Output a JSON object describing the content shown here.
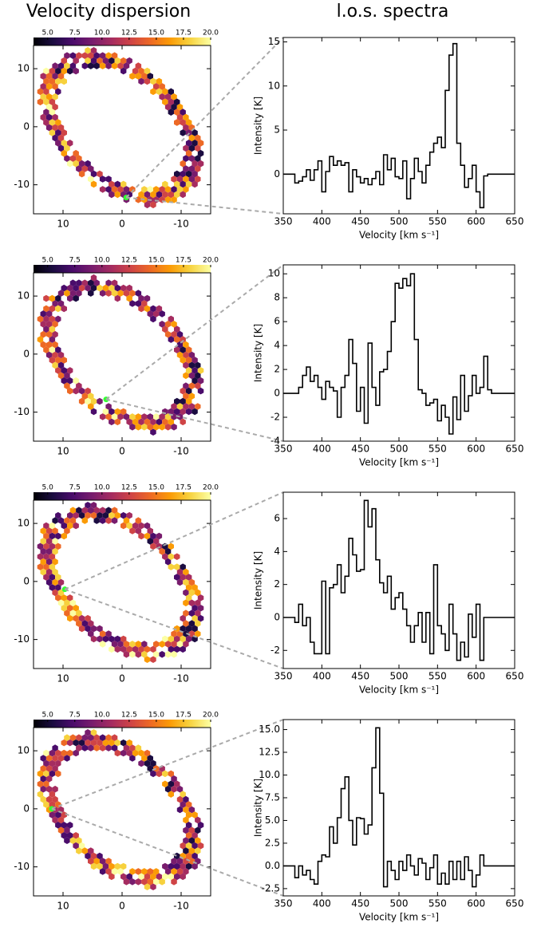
{
  "chart_data": [
    {
      "type": "hexbin_map",
      "title": "Velocity dispersion",
      "xlim": [
        15,
        -15
      ],
      "ylim": [
        -15,
        14
      ],
      "xticks": [
        10,
        0,
        -10
      ],
      "yticks": [
        10,
        0,
        -10
      ],
      "colorbar": {
        "lim": [
          3.7,
          20
        ],
        "ticks": [
          {
            "value": 5,
            "label": "5.0"
          },
          7.5,
          {
            "value": 10,
            "label": "10.0"
          },
          12.5,
          {
            "value": 15,
            "label": "15.0"
          },
          17.5,
          {
            "value": 20,
            "label": "20.0"
          }
        ]
      },
      "marker": {
        "x": -0.7,
        "y": -12.2,
        "color": "#33ff33"
      }
    },
    {
      "type": "line",
      "title": "l.o.s. spectra",
      "xlabel": "Velocity [km s⁻¹]",
      "ylabel": "Intensity [K]",
      "color": "#000000",
      "xlim": [
        350,
        650
      ],
      "ylim": [
        -4.5,
        15.5
      ],
      "xticks": [
        350,
        400,
        450,
        500,
        550,
        600,
        650
      ],
      "yticks": [
        0,
        5,
        10,
        15
      ],
      "x": [
        350,
        355,
        360,
        365,
        370,
        375,
        380,
        385,
        390,
        395,
        400,
        405,
        410,
        415,
        420,
        425,
        430,
        435,
        440,
        445,
        450,
        455,
        460,
        465,
        470,
        475,
        480,
        485,
        490,
        495,
        500,
        505,
        510,
        515,
        520,
        525,
        530,
        535,
        540,
        545,
        550,
        555,
        560,
        565,
        570,
        575,
        580,
        585,
        590,
        595,
        600,
        605,
        610,
        615,
        620,
        625,
        630,
        635,
        640,
        645,
        650
      ],
      "values": [
        0,
        0,
        0,
        -1,
        -0.8,
        -0.3,
        0.5,
        -0.7,
        0.5,
        1.5,
        -2,
        0.3,
        2,
        1,
        1.5,
        1,
        1.3,
        -2,
        0.5,
        -0.3,
        -1,
        -0.5,
        -1.2,
        -0.5,
        0.3,
        -1.2,
        2.2,
        0.5,
        1.8,
        -0.3,
        -0.5,
        1.5,
        -2.8,
        -0.5,
        1.8,
        0.3,
        -1,
        1,
        2.5,
        3.5,
        4.2,
        3,
        9.5,
        13.5,
        14.8,
        3.5,
        1,
        -1.5,
        -0.5,
        1,
        -2,
        -3.8,
        -0.2,
        0,
        0,
        0,
        0,
        0,
        0,
        0,
        0
      ]
    },
    {
      "type": "hexbin_map",
      "xlim": [
        15,
        -15
      ],
      "ylim": [
        -15,
        14
      ],
      "xticks": [
        10,
        0,
        -10
      ],
      "yticks": [
        10,
        0,
        -10
      ],
      "colorbar": {
        "lim": [
          3.7,
          20
        ],
        "ticks": [
          {
            "value": 5,
            "label": "5.0"
          },
          7.5,
          {
            "value": 10,
            "label": "10.0"
          },
          12.5,
          {
            "value": 15,
            "label": "15.0"
          },
          17.5,
          {
            "value": 20,
            "label": "20.0"
          }
        ]
      },
      "marker": {
        "x": 2.7,
        "y": -7.8,
        "color": "#33ff33"
      }
    },
    {
      "type": "line",
      "xlabel": "Velocity [km s⁻¹]",
      "ylabel": "Intensity [K]",
      "color": "#000000",
      "xlim": [
        350,
        650
      ],
      "ylim": [
        -4,
        10.75
      ],
      "xticks": [
        350,
        400,
        450,
        500,
        550,
        600,
        650
      ],
      "yticks": [
        -4,
        -2,
        0,
        2,
        4,
        6,
        8,
        10
      ],
      "x": [
        350,
        355,
        360,
        365,
        370,
        375,
        380,
        385,
        390,
        395,
        400,
        405,
        410,
        415,
        420,
        425,
        430,
        435,
        440,
        445,
        450,
        455,
        460,
        465,
        470,
        475,
        480,
        485,
        490,
        495,
        500,
        505,
        510,
        515,
        520,
        525,
        530,
        535,
        540,
        545,
        550,
        555,
        560,
        565,
        570,
        575,
        580,
        585,
        590,
        595,
        600,
        605,
        610,
        615,
        620,
        625,
        630,
        635,
        640,
        645,
        650
      ],
      "values": [
        0,
        0,
        0,
        0,
        0.5,
        1.5,
        2.2,
        1,
        1.5,
        0.5,
        -0.5,
        1,
        0.5,
        0.2,
        -2,
        0.5,
        1.5,
        4.5,
        2.5,
        -1.5,
        0.5,
        -2.5,
        4.2,
        0.5,
        -1,
        1.8,
        2,
        3.5,
        6,
        9.2,
        8.8,
        9.6,
        9,
        10,
        4.5,
        0.3,
        0,
        -1,
        -0.8,
        -0.5,
        -2.3,
        -1,
        -2,
        -3.4,
        -0.3,
        -2.2,
        1.5,
        -1.5,
        -0.2,
        1.5,
        0,
        0.5,
        3.1,
        0.3,
        0,
        0,
        0,
        0,
        0,
        0,
        0
      ]
    },
    {
      "type": "hexbin_map",
      "xlim": [
        15,
        -15
      ],
      "ylim": [
        -15,
        14
      ],
      "xticks": [
        10,
        0,
        -10
      ],
      "yticks": [
        10,
        0,
        -10
      ],
      "colorbar": {
        "lim": [
          3.7,
          20
        ],
        "ticks": [
          {
            "value": 5,
            "label": "5.0"
          },
          7.5,
          {
            "value": 10,
            "label": "10.0"
          },
          12.5,
          {
            "value": 15,
            "label": "15.0"
          },
          17.5,
          {
            "value": 20,
            "label": "20.0"
          }
        ]
      },
      "marker": {
        "x": 9.7,
        "y": -1.35,
        "color": "#33ff33"
      }
    },
    {
      "type": "line",
      "xlabel": "Velocity [km s⁻¹]",
      "ylabel": "Intensity [K]",
      "color": "#000000",
      "xlim": [
        350,
        650
      ],
      "ylim": [
        -3.1,
        7.6
      ],
      "xticks": [
        350,
        400,
        450,
        500,
        550,
        600,
        650
      ],
      "yticks": [
        -2,
        0,
        2,
        4,
        6
      ],
      "x": [
        350,
        355,
        360,
        365,
        370,
        375,
        380,
        385,
        390,
        395,
        400,
        405,
        410,
        415,
        420,
        425,
        430,
        435,
        440,
        445,
        450,
        455,
        460,
        465,
        470,
        475,
        480,
        485,
        490,
        495,
        500,
        505,
        510,
        515,
        520,
        525,
        530,
        535,
        540,
        545,
        550,
        555,
        560,
        565,
        570,
        575,
        580,
        585,
        590,
        595,
        600,
        605,
        610,
        615,
        620,
        625,
        630,
        635,
        640,
        645,
        650
      ],
      "values": [
        0,
        0,
        0,
        -0.3,
        0.8,
        -0.5,
        0,
        -1.5,
        -2.2,
        -2.2,
        2.2,
        -2.2,
        1.8,
        2,
        3.2,
        1.5,
        2.5,
        4.8,
        3.8,
        2.8,
        2.9,
        7.1,
        5.5,
        6.6,
        3.5,
        2.1,
        1.5,
        2.5,
        0.5,
        1.2,
        1.5,
        0.5,
        -0.5,
        -1.5,
        -0.5,
        0.3,
        -1.5,
        0.3,
        -2.2,
        3.2,
        -0.5,
        -1,
        -2,
        0.8,
        -1,
        -2.6,
        -1.5,
        -2.4,
        0.2,
        -1.2,
        0.8,
        -2.6,
        0,
        0,
        0,
        0,
        0,
        0,
        0,
        0,
        0
      ]
    },
    {
      "type": "hexbin_map",
      "xlim": [
        15,
        -15
      ],
      "ylim": [
        -15,
        14
      ],
      "xticks": [
        10,
        0,
        -10
      ],
      "yticks": [
        10,
        0,
        -10
      ],
      "colorbar": {
        "lim": [
          3.7,
          20
        ],
        "ticks": [
          {
            "value": 5,
            "label": "5.0"
          },
          7.5,
          {
            "value": 10,
            "label": "10.0"
          },
          12.5,
          {
            "value": 15,
            "label": "15.0"
          },
          17.5,
          {
            "value": 20,
            "label": "20.0"
          }
        ]
      },
      "marker": {
        "x": 11.9,
        "y": 0,
        "color": "#33ff33"
      }
    },
    {
      "type": "line",
      "xlabel": "Velocity [km s⁻¹]",
      "ylabel": "Intensity [K]",
      "color": "#000000",
      "xlim": [
        350,
        650
      ],
      "ylim": [
        -3.3,
        16.1
      ],
      "xticks": [
        350,
        400,
        450,
        500,
        550,
        600,
        650
      ],
      "yticks": [
        -2.5,
        {
          "value": 0,
          "label": "0.0"
        },
        2.5,
        {
          "value": 5,
          "label": "5.0"
        },
        7.5,
        {
          "value": 10,
          "label": "10.0"
        },
        12.5,
        {
          "value": 15,
          "label": "15.0"
        }
      ],
      "x": [
        350,
        355,
        360,
        365,
        370,
        375,
        380,
        385,
        390,
        395,
        400,
        405,
        410,
        415,
        420,
        425,
        430,
        435,
        440,
        445,
        450,
        455,
        460,
        465,
        470,
        475,
        480,
        485,
        490,
        495,
        500,
        505,
        510,
        515,
        520,
        525,
        530,
        535,
        540,
        545,
        550,
        555,
        560,
        565,
        570,
        575,
        580,
        585,
        590,
        595,
        600,
        605,
        610,
        615,
        620,
        625,
        630,
        635,
        640,
        645,
        650
      ],
      "values": [
        0,
        0,
        0,
        -1.3,
        0,
        -1,
        -0.5,
        -1.5,
        -2,
        0.5,
        1.2,
        1,
        4.3,
        2.5,
        5.3,
        8.5,
        9.8,
        5,
        2.3,
        5.3,
        5.2,
        3.5,
        4.5,
        10.8,
        15.2,
        8,
        -2.3,
        0.5,
        -0.5,
        -1.5,
        0.5,
        -0.5,
        1.2,
        0,
        -1,
        0.8,
        0.3,
        -1.5,
        -0.2,
        1.2,
        -2,
        -0.8,
        -2,
        0.5,
        -1.5,
        0.5,
        -1.5,
        1,
        -0.5,
        -2.3,
        -1,
        1.2,
        0,
        0,
        0,
        0,
        0,
        0,
        0,
        0,
        0
      ]
    }
  ]
}
